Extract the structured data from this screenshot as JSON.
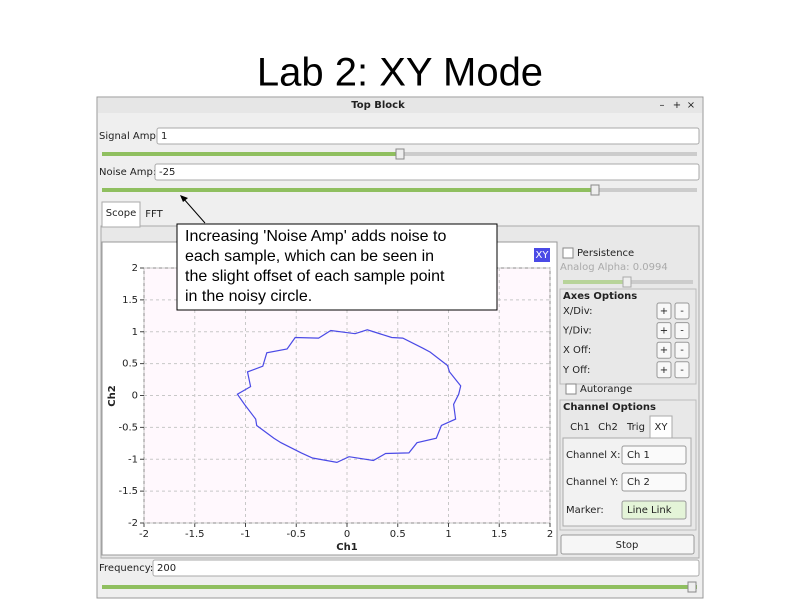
{
  "slide_title": "Lab 2: XY Mode",
  "window": {
    "title": "Top Block",
    "controls": [
      "–",
      "+",
      "×"
    ]
  },
  "controls": {
    "signal_amp": {
      "label": "Signal Amp:",
      "value": "1"
    },
    "noise_amp": {
      "label": "Noise Amp:",
      "value": "-25"
    },
    "frequency": {
      "label": "Frequency:",
      "value": "200"
    }
  },
  "tabs": [
    "Scope",
    "FFT"
  ],
  "annotation": {
    "lines": [
      "Increasing 'Noise Amp' adds noise to",
      "each sample, which can be seen in",
      "the slight offset of each sample point",
      "in the noisy circle."
    ]
  },
  "chart_data": {
    "type": "line",
    "xlabel": "Ch1",
    "ylabel": "Ch2",
    "x": [
      1.1,
      1.12,
      1.01,
      0.99,
      0.82,
      0.75,
      0.55,
      0.44,
      0.2,
      0.08,
      -0.16,
      -0.28,
      -0.51,
      -0.59,
      -0.79,
      -0.83,
      -0.98,
      -0.95,
      -1.08,
      -1.01,
      -0.9,
      -0.89,
      -0.72,
      -0.65,
      -0.45,
      -0.34,
      -0.1,
      0.02,
      0.26,
      0.38,
      0.61,
      0.69,
      0.88,
      0.93,
      1.07,
      1.05,
      1.1
    ],
    "series": [
      {
        "name": "XY",
        "color": "#4a4ae6",
        "values": [
          0.02,
          0.15,
          0.37,
          0.47,
          0.68,
          0.74,
          0.9,
          0.91,
          1.03,
          0.97,
          1.02,
          0.9,
          0.91,
          0.73,
          0.67,
          0.46,
          0.37,
          0.14,
          0.02,
          -0.14,
          -0.37,
          -0.47,
          -0.67,
          -0.74,
          -0.9,
          -0.98,
          -1.05,
          -0.96,
          -1.02,
          -0.91,
          -0.9,
          -0.74,
          -0.67,
          -0.47,
          -0.37,
          -0.14,
          0.02
        ]
      }
    ],
    "xlim": [
      -2,
      2
    ],
    "ylim": [
      -2,
      2
    ],
    "xticks": [
      -2,
      -1.5,
      -1,
      -0.5,
      0,
      0.5,
      1,
      1.5,
      2
    ],
    "yticks": [
      -2,
      -1.5,
      -1,
      -0.5,
      0,
      0.5,
      1,
      1.5,
      2
    ],
    "grid": true
  },
  "side_panel": {
    "persistence": "Persistence",
    "analog_alpha": "Analog Alpha: 0.0994",
    "axes_options": "Axes Options",
    "axes": [
      "X/Div:",
      "Y/Div:",
      "X Off:",
      "Y Off:"
    ],
    "plus": "+",
    "minus": "-",
    "autorange": "Autorange",
    "channel_options": "Channel Options",
    "channel_tabs": [
      "Ch1",
      "Ch2",
      "Trig",
      "XY"
    ],
    "channel_x": {
      "label": "Channel X:",
      "value": "Ch 1"
    },
    "channel_y": {
      "label": "Channel Y:",
      "value": "Ch 2"
    },
    "marker": {
      "label": "Marker:",
      "value": "Line Link"
    },
    "stop": "Stop"
  }
}
